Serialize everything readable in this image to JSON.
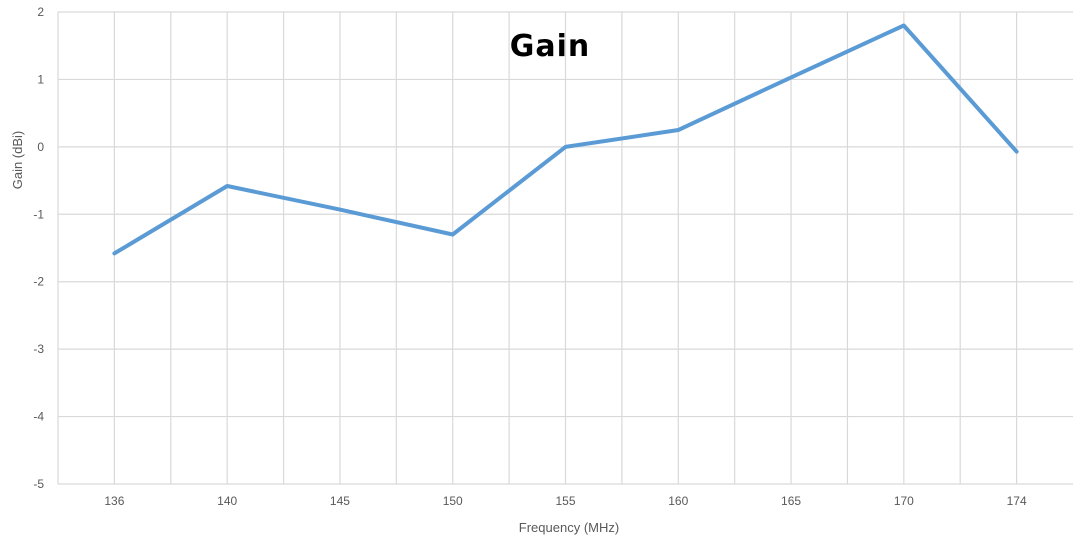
{
  "chart_data": {
    "type": "line",
    "title": "Gain",
    "xlabel": "Frequency (MHz)",
    "ylabel": "Gain (dBi)",
    "categories": [
      "136",
      "140",
      "145",
      "150",
      "155",
      "160",
      "165",
      "170",
      "174"
    ],
    "series": [
      {
        "values": [
          -1.58,
          -0.58,
          -0.93,
          -1.3,
          0.0,
          0.25,
          1.03,
          1.8,
          -0.07
        ],
        "color": "#5B9BD5"
      }
    ],
    "ylim": [
      -5,
      2
    ],
    "yticks": [
      "2",
      "1",
      "0",
      "-1",
      "-2",
      "-3",
      "-4",
      "-5"
    ],
    "grid": true,
    "legend": "none",
    "colors": {
      "gridline": "#d9d9d9",
      "text": "#595959"
    }
  }
}
